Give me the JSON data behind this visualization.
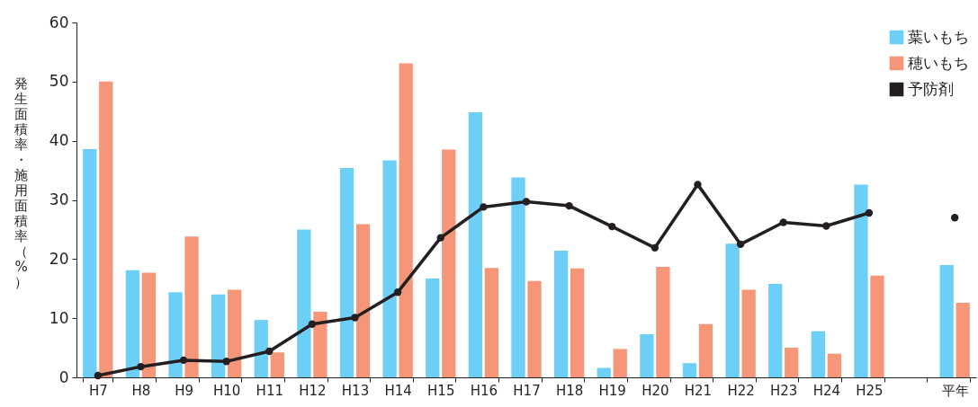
{
  "chart_data": {
    "type": "bar",
    "ylabel": "発生面積率・施用面積率（%）",
    "categories": [
      "H7",
      "H8",
      "H9",
      "H10",
      "H11",
      "H12",
      "H13",
      "H14",
      "H15",
      "H16",
      "H17",
      "H18",
      "H19",
      "H20",
      "H21",
      "H22",
      "H23",
      "H24",
      "H25",
      null,
      "平年"
    ],
    "series": [
      {
        "name": "葉いもち",
        "color": "#6dcff6",
        "values": [
          38.6,
          18.1,
          14.4,
          14,
          9.7,
          25,
          35.4,
          36.7,
          16.7,
          44.8,
          33.8,
          21.4,
          1.6,
          7.3,
          2.4,
          22.6,
          15.8,
          7.8,
          32.6,
          null,
          19
        ]
      },
      {
        "name": "穂いもち",
        "color": "#f69679",
        "values": [
          50,
          17.7,
          23.8,
          14.8,
          4.2,
          11.1,
          25.9,
          53.1,
          38.5,
          18.5,
          16.3,
          18.4,
          4.8,
          18.7,
          9,
          14.8,
          5,
          4,
          17.2,
          null,
          12.6
        ]
      },
      {
        "name": "予防剤",
        "type": "line",
        "color": "#231f20",
        "values": [
          0.3,
          1.8,
          2.9,
          2.7,
          4.4,
          9,
          10.1,
          14.4,
          23.6,
          28.8,
          29.7,
          29,
          25.5,
          21.9,
          32.6,
          22.5,
          26.2,
          25.6,
          27.8,
          null,
          27
        ]
      }
    ],
    "ylim": [
      0,
      60
    ],
    "yticks": [
      0,
      10,
      20,
      30,
      40,
      50,
      60
    ],
    "marker": "circle",
    "legend": "top right"
  }
}
